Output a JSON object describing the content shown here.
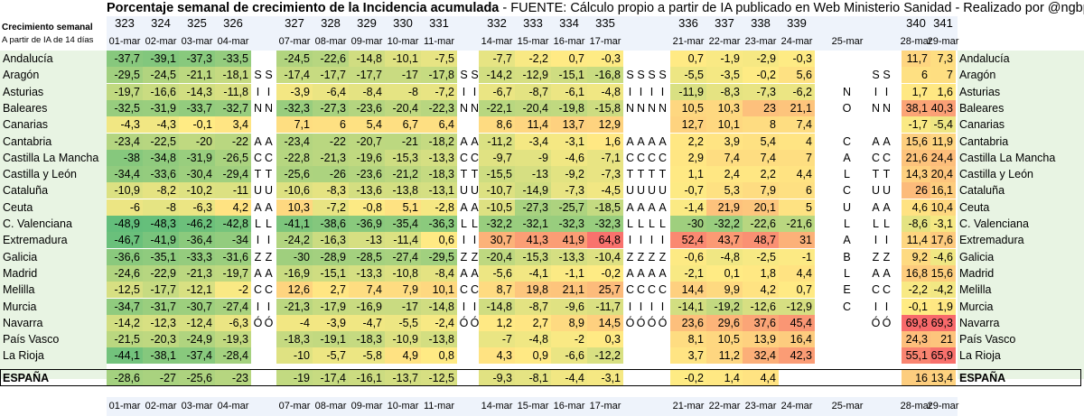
{
  "chart_data": {
    "type": "heatmap",
    "title_bold": "Porcentaje semanal de crecimiento de la Incidencia acumulada",
    "title_rest": " - FUENTE: Cálculo propio a partir de IA publicado en Web Ministerio Sanidad - Realizado por @ngbpadel2",
    "side_title": "Crecimiento semanal",
    "side_subtitle": "A partir de IA de 14 días",
    "columns": [
      {
        "week": "323",
        "date": "01-mar"
      },
      {
        "week": "324",
        "date": "02-mar"
      },
      {
        "week": "325",
        "date": "03-mar"
      },
      {
        "week": "326",
        "date": "04-mar"
      },
      {
        "week": "327",
        "date": "07-mar"
      },
      {
        "week": "328",
        "date": "08-mar"
      },
      {
        "week": "329",
        "date": "09-mar"
      },
      {
        "week": "330",
        "date": "10-mar"
      },
      {
        "week": "331",
        "date": "11-mar"
      },
      {
        "week": "332",
        "date": "14-mar"
      },
      {
        "week": "333",
        "date": "15-mar"
      },
      {
        "week": "334",
        "date": "16-mar"
      },
      {
        "week": "335",
        "date": "17-mar"
      },
      {
        "week": "336",
        "date": "21-mar"
      },
      {
        "week": "337",
        "date": "22-mar"
      },
      {
        "week": "338",
        "date": "23-mar"
      },
      {
        "week": "339",
        "date": "24-mar"
      },
      {
        "week": "",
        "date": "25-mar"
      },
      {
        "week": "340",
        "date": "28-mar"
      },
      {
        "week": "341",
        "date": "29-mar"
      }
    ],
    "rows": [
      {
        "name": "Andalucía",
        "values": [
          -37.7,
          -39.1,
          -37.3,
          -33.5,
          -24.5,
          -22.6,
          -14.8,
          -10.1,
          -7.5,
          -7.7,
          -2.2,
          0.7,
          -0.3,
          0.7,
          -1.9,
          -2.9,
          -0.3,
          null,
          11.7,
          7.3
        ]
      },
      {
        "name": "Aragón",
        "values": [
          -29.5,
          -24.5,
          -21.1,
          -18.1,
          -17.4,
          -17.7,
          -17.7,
          -17,
          -17.8,
          -14.2,
          -12.9,
          -15.1,
          -16.8,
          -5.5,
          -3.5,
          -0.2,
          5.6,
          null,
          6,
          7
        ]
      },
      {
        "name": "Asturias",
        "values": [
          -19.7,
          -16.6,
          -14.3,
          -11.8,
          -3.9,
          -6.4,
          -8.4,
          -8,
          -7.2,
          -6.7,
          -8.7,
          -6.1,
          -4.8,
          -11.9,
          -8.3,
          -7.3,
          -6.2,
          null,
          1.7,
          1.6
        ]
      },
      {
        "name": "Baleares",
        "values": [
          -32.5,
          -31.9,
          -33.7,
          -32.7,
          -32.3,
          -27.3,
          -23.6,
          -20.4,
          -22.3,
          -22.1,
          -20.4,
          -19.8,
          -15.8,
          10.5,
          10.3,
          23,
          21.1,
          null,
          38.1,
          40.3
        ]
      },
      {
        "name": "Canarias",
        "values": [
          -4.3,
          -4.3,
          -0.1,
          3.4,
          7.1,
          6,
          5.4,
          6.7,
          6.4,
          8.6,
          11.4,
          13.7,
          12.9,
          12.7,
          10.1,
          8,
          7.4,
          null,
          -1.7,
          -5.4
        ]
      },
      {
        "name": "Cantabria",
        "values": [
          -23.4,
          -22.5,
          -20,
          -22,
          -23.4,
          -22,
          -20.7,
          -21,
          -18.2,
          -11.2,
          -3.4,
          -3.1,
          1.6,
          2.2,
          3.9,
          5.4,
          4,
          null,
          15.6,
          11.9
        ]
      },
      {
        "name": "Castilla La Mancha",
        "values": [
          -38,
          -34.8,
          -31.9,
          -26.5,
          -22.8,
          -21.3,
          -19.6,
          -15.3,
          -13.3,
          -9.7,
          -9,
          -4.6,
          -7.1,
          2.9,
          7.4,
          7.4,
          7,
          null,
          21.6,
          24.4
        ]
      },
      {
        "name": "Castilla y León",
        "values": [
          -34.4,
          -33.6,
          -30.4,
          -29.4,
          -25.6,
          -26,
          -23.6,
          -21.2,
          -18.3,
          -15.5,
          -13,
          -9.2,
          -7.3,
          1.1,
          2.4,
          2.2,
          4.4,
          null,
          14.3,
          20.4
        ]
      },
      {
        "name": "Cataluña",
        "values": [
          -10.9,
          -8.2,
          -10.2,
          -11,
          -10.6,
          -8.3,
          -13.6,
          -13.8,
          -13.1,
          -10.7,
          -14.9,
          -7.3,
          -4.5,
          -0.7,
          5.3,
          7.9,
          6,
          null,
          26,
          16.1
        ]
      },
      {
        "name": "Ceuta",
        "values": [
          -6,
          -8,
          -6.3,
          4.2,
          10.3,
          -7.2,
          -0.8,
          5.1,
          -2.8,
          -10.5,
          -27.3,
          -25.7,
          -18.5,
          -1.4,
          21.9,
          20.1,
          5,
          null,
          4.6,
          10.4
        ]
      },
      {
        "name": "C. Valenciana",
        "values": [
          -48.9,
          -48.3,
          -46.2,
          -42.8,
          -41.1,
          -38.6,
          -36.9,
          -35.4,
          -36.3,
          -32.2,
          -32.1,
          -32.3,
          -32.3,
          -30,
          -32.2,
          -22.6,
          -21.6,
          null,
          -8.6,
          -3.1
        ]
      },
      {
        "name": "Extremadura",
        "values": [
          -46.7,
          -41.9,
          -36.4,
          -34,
          -24.2,
          -16.3,
          -13,
          -11.4,
          0.6,
          30.7,
          41.3,
          41.9,
          64.8,
          52.4,
          43.7,
          48.7,
          31,
          null,
          11.4,
          17.6
        ]
      },
      {
        "name": "Galicia",
        "values": [
          -36.6,
          -35.1,
          -33.3,
          -31.6,
          -30,
          -28.9,
          -28.5,
          -27.4,
          -29.5,
          -20.4,
          -15.3,
          -13.3,
          -10.4,
          -0.6,
          -4.8,
          -2.5,
          -1,
          null,
          9.2,
          -4.6
        ]
      },
      {
        "name": "Madrid",
        "values": [
          -24.6,
          -22.9,
          -21.3,
          -19.7,
          -16.9,
          -15.1,
          -13.3,
          -10.8,
          -8.4,
          -5.6,
          -4.1,
          -1.1,
          -0.2,
          -2.1,
          0.1,
          1.8,
          4.4,
          null,
          16.8,
          15.6
        ]
      },
      {
        "name": "Melilla",
        "values": [
          -12.5,
          -17.7,
          -12.1,
          -2,
          12.6,
          2.7,
          7.4,
          7.9,
          10.1,
          8.7,
          19.8,
          21.1,
          25.7,
          14.4,
          9.9,
          4.2,
          0.7,
          null,
          -2.2,
          -4.2
        ]
      },
      {
        "name": "Murcia",
        "values": [
          -34.7,
          -31.7,
          -30.7,
          -27.4,
          -21.3,
          -17.9,
          -16.9,
          -17,
          -14.8,
          -14.8,
          -8.7,
          -9.6,
          -11.7,
          -14.1,
          -19.2,
          -12.6,
          -12.9,
          null,
          -0.1,
          1.9
        ]
      },
      {
        "name": "Navarra",
        "values": [
          -14.2,
          -12.3,
          -12.4,
          -6.3,
          -4,
          -3.9,
          -4.7,
          -5.5,
          -2.4,
          1.2,
          2.7,
          8.9,
          14.5,
          23.6,
          29.6,
          37.6,
          45.4,
          null,
          69.8,
          69.3
        ]
      },
      {
        "name": "País Vasco",
        "values": [
          -21.5,
          -20.3,
          -24.9,
          -19.3,
          -18.3,
          -19.1,
          -18.3,
          -10.9,
          -13.8,
          -7,
          -4.8,
          -2,
          0.3,
          8.1,
          10.5,
          13.9,
          16.4,
          null,
          24.3,
          21
        ]
      },
      {
        "name": "La Rioja",
        "values": [
          -44.1,
          -38.1,
          -37.4,
          -28.4,
          -10,
          -5.7,
          -5.8,
          4.9,
          0.8,
          4.3,
          0.9,
          -6.6,
          -12.2,
          3.7,
          11.2,
          32.4,
          42.3,
          null,
          55.1,
          65.9
        ]
      },
      {
        "name": "ESPAÑA",
        "values": [
          -28.6,
          -27,
          -25.6,
          -23,
          -19,
          -17.4,
          -16.1,
          -13.7,
          -12.5,
          -9.3,
          -8.1,
          -4.4,
          -3.1,
          -0.2,
          1.4,
          4.4,
          null,
          null,
          16,
          13.4
        ]
      }
    ],
    "gap_letters": {
      "Aragón": [
        "S",
        "S",
        "S",
        "S",
        "S"
      ],
      "Asturias": [
        "I",
        "I",
        "I",
        "I",
        "I"
      ],
      "Baleares": [
        "N",
        "N",
        "N",
        "N",
        "N"
      ],
      "Cantabria": [
        "A",
        "A",
        "A",
        "A",
        "A"
      ],
      "Castilla La Mancha": [
        "C",
        "C",
        "C",
        "C",
        "C"
      ],
      "Castilla y León": [
        "T",
        "T",
        "T",
        "T",
        "T"
      ],
      "Cataluña": [
        "U",
        "U",
        "U",
        "U",
        "U"
      ],
      "Ceuta": [
        "A",
        "A",
        "A",
        "A",
        "A"
      ],
      "C. Valenciana": [
        "L",
        "L",
        "L",
        "L",
        "L"
      ],
      "Extremadura": [
        "I",
        "I",
        "I",
        "I",
        "I"
      ],
      "Galicia": [
        "Z",
        "Z",
        "Z",
        "Z",
        "Z"
      ],
      "Madrid": [
        "A",
        "A",
        "A",
        "A",
        "A"
      ],
      "Melilla": [
        "C",
        "C",
        "C",
        "C",
        "C"
      ],
      "Murcia": [
        "I",
        "I",
        "I",
        "I",
        "I"
      ],
      "Navarra": [
        "Ó",
        "Ó",
        "Ó",
        "Ó",
        "Ó"
      ]
    },
    "col25_letters": {
      "Asturias": "N",
      "Baleares": "O",
      "Cantabria": "C",
      "Castilla La Mancha": "A",
      "Castilla y León": "L",
      "Cataluña": "C",
      "Ceuta": "U",
      "C. Valenciana": "L",
      "Extremadura": "A",
      "Galicia": "B",
      "Madrid": "L",
      "Melilla": "E",
      "Murcia": "C"
    },
    "colors": {
      "low": "#63BE7B",
      "mid": "#FFEB84",
      "high": "#F8696B",
      "border": "#000000"
    },
    "scale": {
      "min": -48.9,
      "mid": 0,
      "max": 69.8
    }
  }
}
